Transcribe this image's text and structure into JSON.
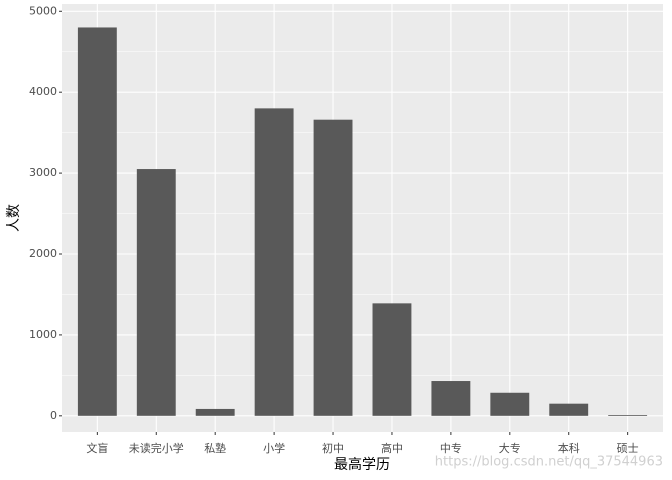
{
  "chart_data": {
    "type": "bar",
    "x_label": "最高学历",
    "y_label": "人数",
    "categories": [
      "文盲",
      "未读完小学",
      "私塾",
      "小学",
      "初中",
      "高中",
      "中专",
      "大专",
      "本科",
      "硕士"
    ],
    "values": [
      4800,
      3050,
      85,
      3800,
      3660,
      1390,
      430,
      285,
      150,
      10
    ],
    "color": "#595959",
    "ylim": [
      -200,
      5090
    ],
    "yticks": [
      0,
      1000,
      2000,
      3000,
      4000,
      5000
    ],
    "minor_yticks": [
      500,
      1500,
      2500,
      3500,
      4500
    ],
    "grid": true
  },
  "watermark": "https://blog.csdn.net/qq_37544963"
}
